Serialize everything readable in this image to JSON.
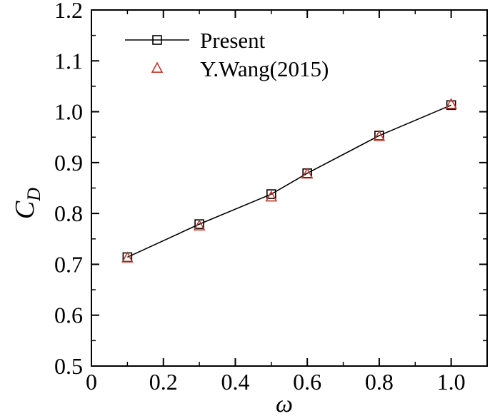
{
  "chart_data": {
    "type": "line",
    "title": "",
    "xlabel": "ω",
    "ylabel": "C",
    "ylabel_subscript": "D",
    "xlim": [
      0,
      1.1
    ],
    "ylim": [
      0.5,
      1.2
    ],
    "x_ticks": [
      0,
      0.2,
      0.4,
      0.6,
      0.8,
      1.0
    ],
    "x_tick_labels": [
      "0",
      "0.2",
      "0.4",
      "0.6",
      "0.8",
      "1.0"
    ],
    "y_ticks": [
      0.5,
      0.6,
      0.7,
      0.8,
      0.9,
      1.0,
      1.1,
      1.2
    ],
    "y_tick_labels": [
      "0.5",
      "0.6",
      "0.7",
      "0.8",
      "0.9",
      "1.0",
      "1.1",
      "1.2"
    ],
    "grid": false,
    "legend_position": "top-left",
    "series": [
      {
        "name": "Present",
        "marker": "square",
        "line": true,
        "color": "#000000",
        "x": [
          0.1,
          0.3,
          0.5,
          0.6,
          0.8,
          1.0
        ],
        "values": [
          0.714,
          0.779,
          0.838,
          0.879,
          0.953,
          1.013
        ]
      },
      {
        "name": "Y.Wang(2015)",
        "marker": "triangle",
        "line": false,
        "color": "#c0392b",
        "x": [
          0.1,
          0.3,
          0.5,
          0.6,
          0.8,
          1.0
        ],
        "values": [
          0.712,
          0.775,
          0.832,
          0.877,
          0.951,
          1.014
        ]
      }
    ]
  }
}
